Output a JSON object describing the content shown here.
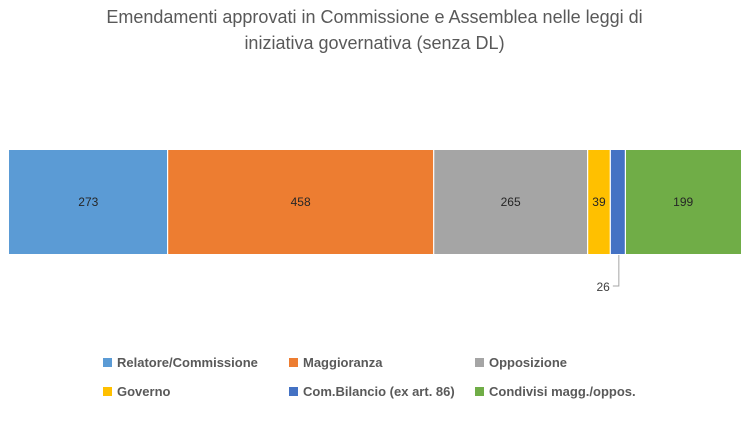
{
  "chart_data": {
    "type": "bar",
    "orientation": "horizontal-stacked",
    "title": "Emendamenti approvati in Commissione e Assemblea nelle leggi di iniziativa governativa (senza DL)",
    "title_lines": [
      "Emendamenti approvati in Commissione e Assemblea nelle leggi di",
      "iniziativa governativa (senza DL)"
    ],
    "xlabel": "",
    "ylabel": "",
    "grid": false,
    "legend_position": "bottom",
    "total": 1260,
    "series": [
      {
        "name": "Relatore/Commissione",
        "values": [
          273
        ],
        "label": "273",
        "color": "#5B9BD5"
      },
      {
        "name": "Maggioranza",
        "values": [
          458
        ],
        "label": "458",
        "color": "#ED7D31"
      },
      {
        "name": "Opposizione",
        "values": [
          265
        ],
        "label": "265",
        "color": "#A5A5A5"
      },
      {
        "name": "Governo",
        "values": [
          39
        ],
        "label": "39",
        "color": "#FFC000"
      },
      {
        "name": "Com.Bilancio (ex art. 86)",
        "values": [
          26
        ],
        "label": "26",
        "color": "#4472C4",
        "label_callout": true
      },
      {
        "name": "Condivisi magg./oppos.",
        "values": [
          199
        ],
        "label": "199",
        "color": "#70AD47"
      }
    ]
  }
}
